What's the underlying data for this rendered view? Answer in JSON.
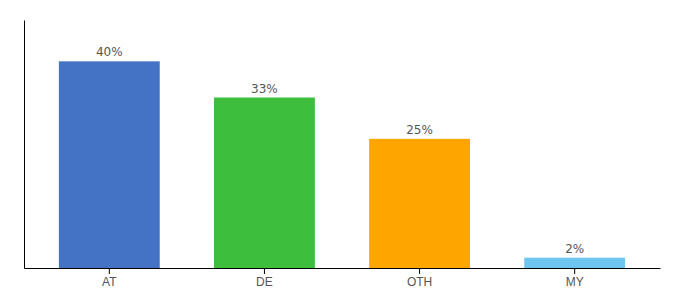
{
  "chart_data": {
    "type": "bar",
    "categories": [
      "AT",
      "DE",
      "OTH",
      "MY"
    ],
    "values": [
      40,
      33,
      25,
      2
    ],
    "value_labels": [
      "40%",
      "33%",
      "25%",
      "2%"
    ],
    "data_labels": true,
    "colors": [
      "#4472c4",
      "#3dbf3d",
      "#FFA500",
      "#6ec6f0"
    ],
    "ylim": [
      0,
      48
    ],
    "tick_labels": "x",
    "grid": false
  }
}
